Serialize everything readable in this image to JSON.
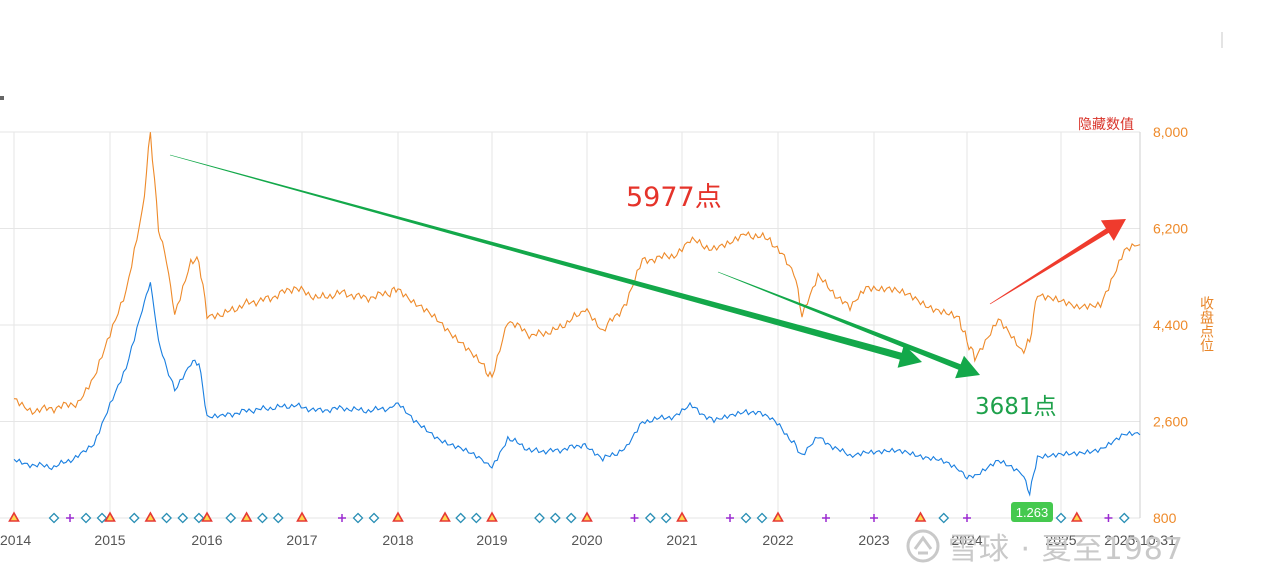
{
  "legend_link": "隐藏数值",
  "right_axis_label": "收盘点位",
  "watermark": "雪球 · 夏至1987",
  "colors": {
    "orange": "#ee8a2a",
    "blue": "#1a7fe0",
    "green_arrow": "#13a84a",
    "red_arrow": "#ef3b2d",
    "grid": "#e6e6e6"
  },
  "annotations": {
    "peak_label": "5977点",
    "target_label": "3681点",
    "min_badge": "1.263"
  },
  "chart_data": {
    "type": "line",
    "title": "",
    "x": {
      "type": "date",
      "ticks": [
        "2014",
        "2015",
        "2016",
        "2017",
        "2018",
        "2019",
        "2020",
        "2021",
        "2022",
        "2023",
        "2024",
        "2025",
        "2025-10-31"
      ],
      "range": [
        "2014-01",
        "2025-10-31"
      ]
    },
    "y_right": {
      "label": "收盘点位",
      "ticks": [
        "8,000",
        "6,200",
        "4,400",
        "2,600",
        "800"
      ],
      "range": [
        800,
        8000
      ]
    },
    "series": [
      {
        "name": "",
        "axis": "right",
        "color": "#ee8a2a",
        "points": [
          [
            "2014-01",
            3000
          ],
          [
            "2014-03",
            2800
          ],
          [
            "2014-06",
            2850
          ],
          [
            "2014-09",
            2950
          ],
          [
            "2014-11",
            3400
          ],
          [
            "2015-01",
            4200
          ],
          [
            "2015-03",
            5000
          ],
          [
            "2015-05",
            6500
          ],
          [
            "2015-06",
            8000
          ],
          [
            "2015-07",
            6200
          ],
          [
            "2015-08",
            5600
          ],
          [
            "2015-09",
            4600
          ],
          [
            "2015-11",
            5600
          ],
          [
            "2015-12",
            5600
          ],
          [
            "2016-01",
            4600
          ],
          [
            "2016-03",
            4600
          ],
          [
            "2016-06",
            4800
          ],
          [
            "2016-09",
            4900
          ],
          [
            "2016-12",
            5100
          ],
          [
            "2017-03",
            4900
          ],
          [
            "2017-06",
            5000
          ],
          [
            "2017-09",
            4900
          ],
          [
            "2017-12",
            5000
          ],
          [
            "2018-01",
            5100
          ],
          [
            "2018-03",
            4800
          ],
          [
            "2018-06",
            4500
          ],
          [
            "2018-09",
            4100
          ],
          [
            "2018-12",
            3600
          ],
          [
            "2019-01",
            3400
          ],
          [
            "2019-03",
            4500
          ],
          [
            "2019-06",
            4200
          ],
          [
            "2019-09",
            4300
          ],
          [
            "2019-12",
            4600
          ],
          [
            "2020-01",
            4700
          ],
          [
            "2020-03",
            4300
          ],
          [
            "2020-06",
            4800
          ],
          [
            "2020-08",
            5600
          ],
          [
            "2020-12",
            5700
          ],
          [
            "2021-02",
            6000
          ],
          [
            "2021-05",
            5800
          ],
          [
            "2021-07",
            5900
          ],
          [
            "2021-09",
            6100
          ],
          [
            "2021-12",
            6000
          ],
          [
            "2022-03",
            5400
          ],
          [
            "2022-04",
            4600
          ],
          [
            "2022-06",
            5300
          ],
          [
            "2022-10",
            4700
          ],
          [
            "2022-12",
            5100
          ],
          [
            "2023-03",
            5100
          ],
          [
            "2023-06",
            4900
          ],
          [
            "2023-09",
            4700
          ],
          [
            "2023-12",
            4500
          ],
          [
            "2024-01",
            4100
          ],
          [
            "2024-02",
            3800
          ],
          [
            "2024-05",
            4500
          ],
          [
            "2024-08",
            3900
          ],
          [
            "2024-09",
            4100
          ],
          [
            "2024-10",
            5000
          ],
          [
            "2024-12",
            4900
          ],
          [
            "2025-03",
            4700
          ],
          [
            "2025-06",
            4800
          ],
          [
            "2025-09",
            5800
          ],
          [
            "2025-10-31",
            5900
          ]
        ]
      },
      {
        "name": "",
        "axis": "right",
        "color": "#1a7fe0",
        "points": [
          [
            "2014-01",
            1900
          ],
          [
            "2014-03",
            1800
          ],
          [
            "2014-06",
            1750
          ],
          [
            "2014-09",
            1950
          ],
          [
            "2014-11",
            2150
          ],
          [
            "2015-01",
            2900
          ],
          [
            "2015-03",
            3600
          ],
          [
            "2015-05",
            4700
          ],
          [
            "2015-06",
            5200
          ],
          [
            "2015-07",
            4100
          ],
          [
            "2015-08",
            3600
          ],
          [
            "2015-09",
            3200
          ],
          [
            "2015-11",
            3700
          ],
          [
            "2015-12",
            3700
          ],
          [
            "2016-01",
            2700
          ],
          [
            "2016-03",
            2700
          ],
          [
            "2016-06",
            2800
          ],
          [
            "2016-09",
            2850
          ],
          [
            "2016-12",
            2900
          ],
          [
            "2017-03",
            2800
          ],
          [
            "2017-06",
            2850
          ],
          [
            "2017-09",
            2800
          ],
          [
            "2017-12",
            2850
          ],
          [
            "2018-01",
            2950
          ],
          [
            "2018-03",
            2600
          ],
          [
            "2018-06",
            2300
          ],
          [
            "2018-09",
            2100
          ],
          [
            "2018-12",
            1850
          ],
          [
            "2019-01",
            1750
          ],
          [
            "2019-03",
            2300
          ],
          [
            "2019-06",
            2050
          ],
          [
            "2019-09",
            2050
          ],
          [
            "2019-12",
            2150
          ],
          [
            "2020-01",
            2150
          ],
          [
            "2020-03",
            1900
          ],
          [
            "2020-06",
            2100
          ],
          [
            "2020-08",
            2600
          ],
          [
            "2020-12",
            2700
          ],
          [
            "2021-02",
            2900
          ],
          [
            "2021-05",
            2600
          ],
          [
            "2021-07",
            2700
          ],
          [
            "2021-09",
            2800
          ],
          [
            "2021-12",
            2700
          ],
          [
            "2022-03",
            2200
          ],
          [
            "2022-04",
            1950
          ],
          [
            "2022-06",
            2300
          ],
          [
            "2022-10",
            1950
          ],
          [
            "2022-12",
            2050
          ],
          [
            "2023-03",
            2050
          ],
          [
            "2023-06",
            2000
          ],
          [
            "2023-09",
            1900
          ],
          [
            "2023-12",
            1700
          ],
          [
            "2024-01",
            1550
          ],
          [
            "2024-02",
            1600
          ],
          [
            "2024-05",
            1850
          ],
          [
            "2024-08",
            1650
          ],
          [
            "2024-09",
            1263
          ],
          [
            "2024-10",
            1950
          ],
          [
            "2024-12",
            1950
          ],
          [
            "2025-03",
            2000
          ],
          [
            "2025-06",
            2100
          ],
          [
            "2025-09",
            2350
          ],
          [
            "2025-10-31",
            2350
          ]
        ]
      }
    ],
    "event_markers": [
      {
        "shape": "triangle",
        "date": "2014-01"
      },
      {
        "shape": "diamond",
        "date": "2014-06"
      },
      {
        "shape": "plus",
        "date": "2014-08"
      },
      {
        "shape": "diamond",
        "date": "2014-10"
      },
      {
        "shape": "diamond",
        "date": "2014-12"
      },
      {
        "shape": "triangle",
        "date": "2015-01"
      },
      {
        "shape": "diamond",
        "date": "2015-04"
      },
      {
        "shape": "triangle",
        "date": "2015-06"
      },
      {
        "shape": "diamond",
        "date": "2015-08"
      },
      {
        "shape": "diamond",
        "date": "2015-10"
      },
      {
        "shape": "diamond",
        "date": "2015-12"
      },
      {
        "shape": "triangle",
        "date": "2016-01"
      },
      {
        "shape": "diamond",
        "date": "2016-04"
      },
      {
        "shape": "triangle",
        "date": "2016-06"
      },
      {
        "shape": "diamond",
        "date": "2016-08"
      },
      {
        "shape": "diamond",
        "date": "2016-10"
      },
      {
        "shape": "triangle",
        "date": "2017-01"
      },
      {
        "shape": "plus",
        "date": "2017-06"
      },
      {
        "shape": "diamond",
        "date": "2017-08"
      },
      {
        "shape": "diamond",
        "date": "2017-10"
      },
      {
        "shape": "triangle",
        "date": "2018-01"
      },
      {
        "shape": "triangle",
        "date": "2018-07"
      },
      {
        "shape": "diamond",
        "date": "2018-09"
      },
      {
        "shape": "diamond",
        "date": "2018-11"
      },
      {
        "shape": "triangle",
        "date": "2019-01"
      },
      {
        "shape": "diamond",
        "date": "2019-07"
      },
      {
        "shape": "diamond",
        "date": "2019-09"
      },
      {
        "shape": "diamond",
        "date": "2019-11"
      },
      {
        "shape": "triangle",
        "date": "2020-01"
      },
      {
        "shape": "plus",
        "date": "2020-07"
      },
      {
        "shape": "diamond",
        "date": "2020-09"
      },
      {
        "shape": "diamond",
        "date": "2020-11"
      },
      {
        "shape": "triangle",
        "date": "2021-01"
      },
      {
        "shape": "plus",
        "date": "2021-07"
      },
      {
        "shape": "diamond",
        "date": "2021-09"
      },
      {
        "shape": "diamond",
        "date": "2021-11"
      },
      {
        "shape": "triangle",
        "date": "2022-01"
      },
      {
        "shape": "plus",
        "date": "2022-07"
      },
      {
        "shape": "plus",
        "date": "2023-01"
      },
      {
        "shape": "triangle",
        "date": "2023-07"
      },
      {
        "shape": "diamond",
        "date": "2023-10"
      },
      {
        "shape": "plus",
        "date": "2024-01"
      },
      {
        "shape": "triangle",
        "date": "2024-11"
      },
      {
        "shape": "diamond",
        "date": "2025-01"
      },
      {
        "shape": "triangle",
        "date": "2025-03"
      },
      {
        "shape": "plus",
        "date": "2025-07"
      },
      {
        "shape": "diamond",
        "date": "2025-09"
      }
    ]
  }
}
